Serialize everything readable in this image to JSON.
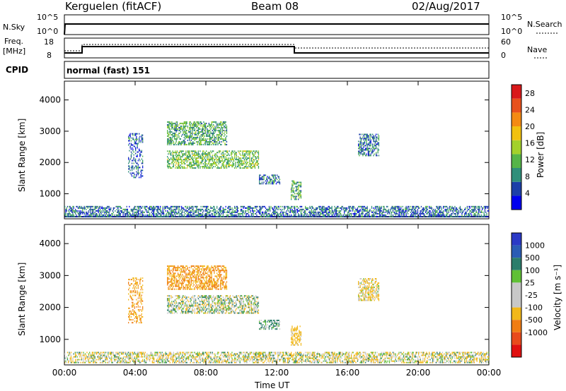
{
  "header": {
    "station": "Kerguelen (fitACF)",
    "beam": "Beam 08",
    "date": "02/Aug/2017"
  },
  "top_panel": {
    "left_label": "N.Sky",
    "left_ticks": [
      "10^5",
      "10^0"
    ],
    "right_ticks": [
      "10^5",
      "10^0"
    ],
    "right_label": "N.Search"
  },
  "freq_panel": {
    "left_label_1": "Freq.",
    "left_label_2": "[MHz]",
    "left_ticks": [
      "18",
      "8"
    ],
    "right_ticks": [
      "60",
      "0"
    ],
    "right_label": "Nave"
  },
  "cpid": {
    "label": "CPID",
    "mode": "normal (fast) 151"
  },
  "colors": {
    "power_scale": [
      "#0000ee",
      "#1c3fa8",
      "#2f8f7a",
      "#55b548",
      "#a3d12b",
      "#f2c10f",
      "#f48a12",
      "#e8511c",
      "#d9181a"
    ],
    "velocity_scale": [
      "#2a39c6",
      "#2a5cb5",
      "#2b7d6b",
      "#60c035",
      "#c8c8c8",
      "#c8c8c8",
      "#f2b81a",
      "#f07d14",
      "#e84a1c",
      "#e01010"
    ]
  },
  "chart_data": [
    {
      "type": "heatmap",
      "title": "",
      "xlabel": "Time UT",
      "ylabel": "Slant Range [km]",
      "x_ticks": [
        "00:00",
        "04:00",
        "08:00",
        "12:00",
        "16:00",
        "20:00",
        "00:00"
      ],
      "y_ticks": [
        "1000",
        "2000",
        "3000",
        "4000"
      ],
      "xlim": [
        0,
        24
      ],
      "ylim": [
        200,
        4600
      ],
      "colorbar_label": "Power [dB]",
      "colorbar_ticks": [
        "4",
        "8",
        "12",
        "16",
        "20",
        "24",
        "28"
      ],
      "colorbar_range": [
        0,
        30
      ],
      "regions": [
        {
          "t_start": 0.0,
          "t_end": 24.0,
          "r_start": 250,
          "r_end": 600,
          "level": 6
        },
        {
          "t_start": 5.8,
          "t_end": 11.0,
          "r_start": 1800,
          "r_end": 2350,
          "level": 12
        },
        {
          "t_start": 5.8,
          "t_end": 9.2,
          "r_start": 2550,
          "r_end": 3300,
          "level": 10
        },
        {
          "t_start": 3.6,
          "t_end": 4.4,
          "r_start": 1500,
          "r_end": 2900,
          "level": 5
        },
        {
          "t_start": 11.0,
          "t_end": 12.2,
          "r_start": 1300,
          "r_end": 1600,
          "level": 6
        },
        {
          "t_start": 12.8,
          "t_end": 13.4,
          "r_start": 800,
          "r_end": 1400,
          "level": 10
        },
        {
          "t_start": 16.6,
          "t_end": 17.8,
          "r_start": 2200,
          "r_end": 2900,
          "level": 6
        }
      ]
    },
    {
      "type": "heatmap",
      "title": "",
      "xlabel": "Time UT",
      "ylabel": "Slant Range [km]",
      "x_ticks": [
        "00:00",
        "04:00",
        "08:00",
        "12:00",
        "16:00",
        "20:00",
        "00:00"
      ],
      "y_ticks": [
        "1000",
        "2000",
        "3000",
        "4000"
      ],
      "xlim": [
        0,
        24
      ],
      "ylim": [
        200,
        4600
      ],
      "colorbar_label": "Velocity [m s⁻¹]",
      "colorbar_ticks": [
        "1000",
        "500",
        "100",
        "25",
        "-25",
        "-100",
        "-500",
        "-1000"
      ],
      "regions": [
        {
          "t_start": 0.0,
          "t_end": 24.0,
          "r_start": 250,
          "r_end": 600,
          "velocity": -30
        },
        {
          "t_start": 5.8,
          "t_end": 11.0,
          "r_start": 1800,
          "r_end": 2350,
          "velocity": 0
        },
        {
          "t_start": 5.8,
          "t_end": 9.2,
          "r_start": 2550,
          "r_end": 3300,
          "velocity": -300
        },
        {
          "t_start": 3.6,
          "t_end": 4.4,
          "r_start": 1500,
          "r_end": 2900,
          "velocity": -300
        },
        {
          "t_start": 11.0,
          "t_end": 12.2,
          "r_start": 1300,
          "r_end": 1600,
          "velocity": 80
        },
        {
          "t_start": 12.8,
          "t_end": 13.4,
          "r_start": 800,
          "r_end": 1400,
          "velocity": -150
        },
        {
          "t_start": 16.6,
          "t_end": 17.8,
          "r_start": 2200,
          "r_end": 2900,
          "velocity": -80
        }
      ]
    }
  ]
}
